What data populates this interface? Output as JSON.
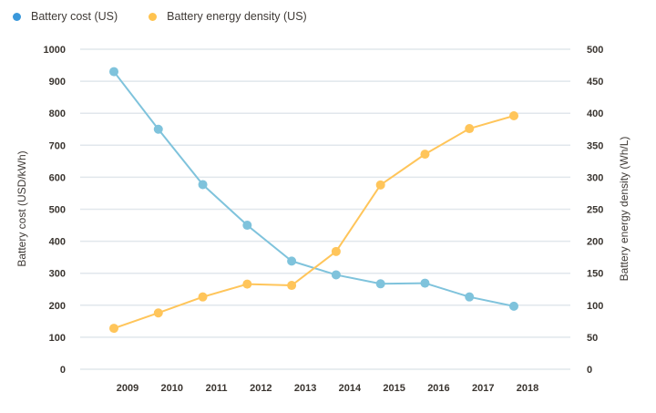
{
  "legend": [
    {
      "label": "Battery cost (US)",
      "color": "#3a98db"
    },
    {
      "label": "Battery energy density (US)",
      "color": "#ffc34f"
    }
  ],
  "chart_data": {
    "type": "line",
    "title": "",
    "x": [
      "2009",
      "2010",
      "2011",
      "2012",
      "2013",
      "2014",
      "2015",
      "2016",
      "2017",
      "2018"
    ],
    "series": [
      {
        "name": "Battery cost (US)",
        "axis": "left",
        "line_color": "#7fc3dc",
        "values": [
          930,
          750,
          577,
          450,
          338,
          295,
          267,
          269,
          226,
          197
        ]
      },
      {
        "name": "Battery energy density (US)",
        "axis": "right",
        "line_color": "#ffc55a",
        "values": [
          64,
          88,
          113,
          133,
          131,
          184,
          288,
          336,
          376,
          396
        ]
      }
    ],
    "ylabel": "Battery cost (USD/kWh)",
    "ylim": [
      0,
      1000
    ],
    "yticks": [
      "0",
      "100",
      "200",
      "300",
      "400",
      "500",
      "600",
      "700",
      "800",
      "900",
      "1000"
    ],
    "y2label": "Battery energy density (Wh/L)",
    "y2lim": [
      0,
      500
    ],
    "y2ticks": [
      "0",
      "50",
      "100",
      "150",
      "200",
      "250",
      "300",
      "350",
      "400",
      "450",
      "500"
    ],
    "xlabel": "",
    "grid": true,
    "legend_position": "top-left"
  }
}
